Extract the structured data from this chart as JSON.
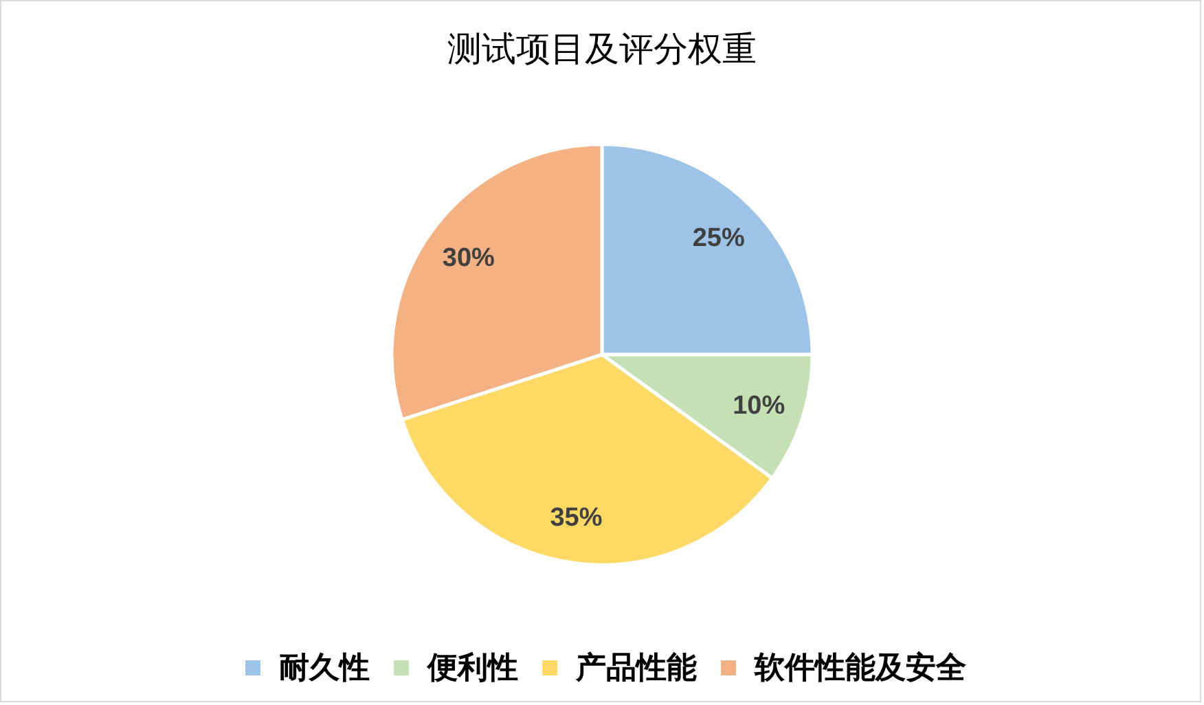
{
  "chart_data": {
    "type": "pie",
    "title": "测试项目及评分权重",
    "categories": [
      "耐久性",
      "便利性",
      "产品性能",
      "软件性能及安全"
    ],
    "values": [
      25,
      10,
      35,
      30
    ],
    "value_labels": [
      "25%",
      "10%",
      "35%",
      "30%"
    ],
    "colors": [
      "#9dc3e6",
      "#c5e0b4",
      "#ffd966",
      "#f4b183"
    ],
    "legend": "bottom"
  }
}
